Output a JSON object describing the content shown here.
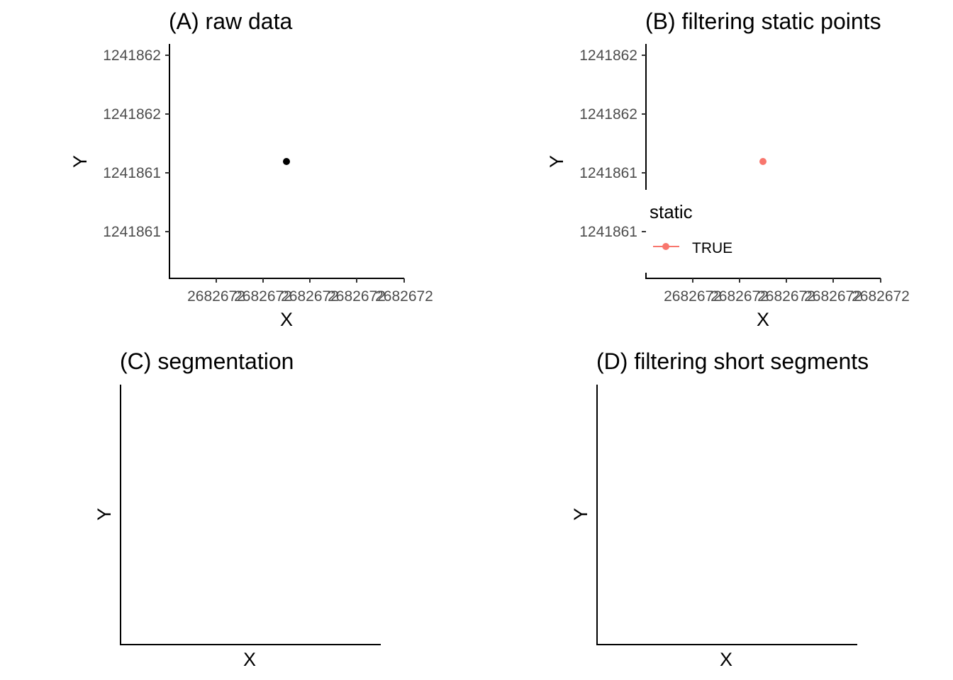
{
  "chart_data": [
    {
      "panel": "A",
      "type": "scatter",
      "title": "(A) raw data",
      "xlabel": "X",
      "ylabel": "Y",
      "x_tick_labels": [
        "2682672",
        "2682672",
        "2682672",
        "2682672",
        "2682672"
      ],
      "y_tick_labels": [
        "1241862",
        "1241862",
        "1241861",
        "1241861"
      ],
      "points": [
        {
          "x": 2682672,
          "y": 1241861,
          "color": "#000000"
        }
      ],
      "legend": null
    },
    {
      "panel": "B",
      "type": "scatter",
      "title": "(B) filtering static points",
      "xlabel": "X",
      "ylabel": "Y",
      "x_tick_labels": [
        "2682672",
        "2682672",
        "2682672",
        "2682672",
        "2682672"
      ],
      "y_tick_labels": [
        "1241862",
        "1241862",
        "1241861",
        "1241861"
      ],
      "points": [
        {
          "x": 2682672,
          "y": 1241861,
          "color": "#F8766D"
        }
      ],
      "legend": {
        "title": "static",
        "entries": [
          {
            "label": "TRUE",
            "color": "#F8766D"
          }
        ],
        "placement": "inside-bottom-left"
      }
    },
    {
      "panel": "C",
      "type": "scatter",
      "title": "(C) segmentation",
      "xlabel": "X",
      "ylabel": "Y",
      "x_tick_labels": [],
      "y_tick_labels": [],
      "points": [],
      "legend": null
    },
    {
      "panel": "D",
      "type": "scatter",
      "title": "(D) filtering short segments",
      "xlabel": "X",
      "ylabel": "Y",
      "x_tick_labels": [],
      "y_tick_labels": [],
      "points": [],
      "legend": null
    }
  ]
}
